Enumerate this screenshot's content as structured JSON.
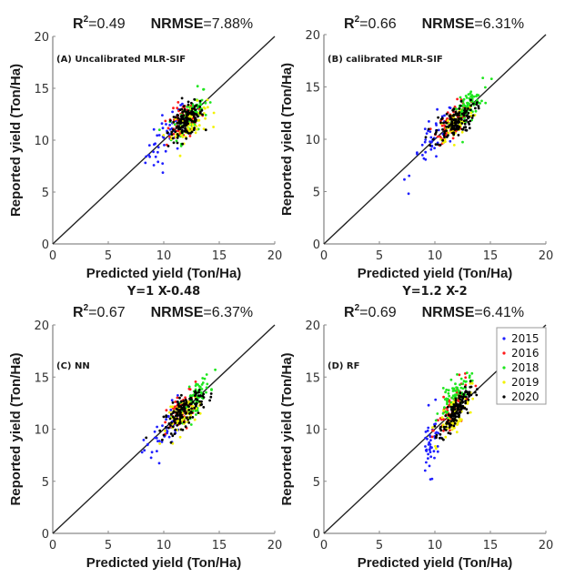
{
  "chart_data": [
    {
      "type": "scatter",
      "panel": "A",
      "panel_label": "(A) Uncalibrated MLR-SIF",
      "title_r2_label": "R",
      "title_r2_sup": "2",
      "title_r2_value": "=0.49",
      "title_nrmse_label": "NRMSE",
      "title_nrmse_value": "=7.88%",
      "xlabel": "Predicted yield (Ton/Ha)",
      "ylabel": "Reported yield (Ton/Ha)",
      "equation": "Y=1 X-0.48",
      "xlim": [
        0,
        20
      ],
      "ylim": [
        0,
        20
      ],
      "xticks": [
        "0",
        "5",
        "10",
        "15",
        "20"
      ],
      "yticks": [
        "0",
        "5",
        "10",
        "15",
        "20"
      ],
      "reference_line": "1:1",
      "clusters": [
        {
          "year": "2015",
          "cx": 10.2,
          "cy": 10.3,
          "sx": 0.9,
          "sy": 1.5,
          "rho": 0.6,
          "n": 45
        },
        {
          "year": "2016",
          "cx": 11.8,
          "cy": 11.8,
          "sx": 0.8,
          "sy": 1.0,
          "rho": 0.5,
          "n": 70
        },
        {
          "year": "2018",
          "cx": 12.4,
          "cy": 12.4,
          "sx": 0.8,
          "sy": 1.2,
          "rho": 0.6,
          "n": 80
        },
        {
          "year": "2019",
          "cx": 12.3,
          "cy": 11.6,
          "sx": 0.8,
          "sy": 0.9,
          "rho": 0.5,
          "n": 70
        },
        {
          "year": "2020",
          "cx": 12.0,
          "cy": 11.8,
          "sx": 0.8,
          "sy": 0.9,
          "rho": 0.55,
          "n": 140
        }
      ]
    },
    {
      "type": "scatter",
      "panel": "B",
      "panel_label": "(B) calibrated MLR-SIF",
      "title_r2_label": "R",
      "title_r2_sup": "2",
      "title_r2_value": "=0.66",
      "title_nrmse_label": "NRMSE",
      "title_nrmse_value": "=6.31%",
      "xlabel": "Predicted yield (Ton/Ha)",
      "ylabel": "Reported yield (Ton/Ha)",
      "equation": "Y=1.2 X-2",
      "xlim": [
        0,
        20
      ],
      "ylim": [
        0,
        20
      ],
      "xticks": [
        "0",
        "5",
        "10",
        "15",
        "20"
      ],
      "yticks": [
        "0",
        "5",
        "10",
        "15",
        "20"
      ],
      "reference_line": "1:1",
      "clusters": [
        {
          "year": "2015",
          "cx": 9.9,
          "cy": 9.9,
          "sx": 1.0,
          "sy": 1.5,
          "rho": 0.7,
          "n": 45
        },
        {
          "year": "2016",
          "cx": 11.6,
          "cy": 11.8,
          "sx": 0.7,
          "sy": 0.9,
          "rho": 0.6,
          "n": 70
        },
        {
          "year": "2018",
          "cx": 12.9,
          "cy": 13.0,
          "sx": 0.7,
          "sy": 1.0,
          "rho": 0.7,
          "n": 80
        },
        {
          "year": "2019",
          "cx": 11.9,
          "cy": 11.6,
          "sx": 0.8,
          "sy": 0.9,
          "rho": 0.6,
          "n": 70
        },
        {
          "year": "2020",
          "cx": 11.8,
          "cy": 11.6,
          "sx": 0.9,
          "sy": 0.9,
          "rho": 0.6,
          "n": 140
        }
      ]
    },
    {
      "type": "scatter",
      "panel": "C",
      "panel_label": "(C) NN",
      "title_r2_label": "R",
      "title_r2_sup": "2",
      "title_r2_value": "=0.67",
      "title_nrmse_label": "NRMSE",
      "title_nrmse_value": "=6.37%",
      "xlabel": "Predicted yield (Ton/Ha)",
      "ylabel": "Reported yield (Ton/Ha)",
      "equation": "",
      "xlim": [
        0,
        20
      ],
      "ylim": [
        0,
        20
      ],
      "xticks": [
        "0",
        "5",
        "10",
        "15",
        "20"
      ],
      "yticks": [
        "0",
        "5",
        "10",
        "15",
        "20"
      ],
      "reference_line": "1:1",
      "clusters": [
        {
          "year": "2015",
          "cx": 10.0,
          "cy": 9.6,
          "sx": 0.9,
          "sy": 1.5,
          "rho": 0.7,
          "n": 45
        },
        {
          "year": "2016",
          "cx": 11.7,
          "cy": 11.9,
          "sx": 0.7,
          "sy": 1.0,
          "rho": 0.6,
          "n": 70
        },
        {
          "year": "2018",
          "cx": 12.8,
          "cy": 13.0,
          "sx": 0.7,
          "sy": 1.0,
          "rho": 0.7,
          "n": 80
        },
        {
          "year": "2019",
          "cx": 11.9,
          "cy": 11.4,
          "sx": 0.8,
          "sy": 0.9,
          "rho": 0.6,
          "n": 70
        },
        {
          "year": "2020",
          "cx": 11.8,
          "cy": 11.7,
          "sx": 0.9,
          "sy": 1.0,
          "rho": 0.7,
          "n": 140
        }
      ]
    },
    {
      "type": "scatter",
      "panel": "D",
      "panel_label": "(D) RF",
      "title_r2_label": "R",
      "title_r2_sup": "2",
      "title_r2_value": "=0.69",
      "title_nrmse_label": "NRMSE",
      "title_nrmse_value": "=6.41%",
      "xlabel": "Predicted yield (Ton/Ha)",
      "ylabel": "Reported yield (Ton/Ha)",
      "equation": "",
      "xlim": [
        0,
        20
      ],
      "ylim": [
        0,
        20
      ],
      "xticks": [
        "0",
        "5",
        "10",
        "15",
        "20"
      ],
      "yticks": [
        "0",
        "5",
        "10",
        "15",
        "20"
      ],
      "reference_line": "1:1",
      "legend": {
        "placement": "top-right",
        "entries": [
          "2015",
          "2016",
          "2018",
          "2019",
          "2020"
        ]
      },
      "clusters": [
        {
          "year": "2015",
          "cx": 9.6,
          "cy": 8.6,
          "sx": 0.4,
          "sy": 1.5,
          "rho": 0.3,
          "n": 45
        },
        {
          "year": "2016",
          "cx": 11.6,
          "cy": 12.0,
          "sx": 0.7,
          "sy": 1.2,
          "rho": 0.7,
          "n": 70
        },
        {
          "year": "2018",
          "cx": 11.8,
          "cy": 13.2,
          "sx": 0.7,
          "sy": 1.0,
          "rho": 0.7,
          "n": 80
        },
        {
          "year": "2019",
          "cx": 11.9,
          "cy": 11.6,
          "sx": 0.7,
          "sy": 1.2,
          "rho": 0.7,
          "n": 70
        },
        {
          "year": "2020",
          "cx": 11.8,
          "cy": 11.5,
          "sx": 0.7,
          "sy": 1.1,
          "rho": 0.8,
          "n": 140
        }
      ]
    }
  ],
  "series_colors": {
    "2015": "#1f1fff",
    "2016": "#ff1a1a",
    "2018": "#1ee61e",
    "2019": "#f2f200",
    "2020": "#000000"
  },
  "legend_entries": [
    "2015",
    "2016",
    "2018",
    "2019",
    "2020"
  ]
}
